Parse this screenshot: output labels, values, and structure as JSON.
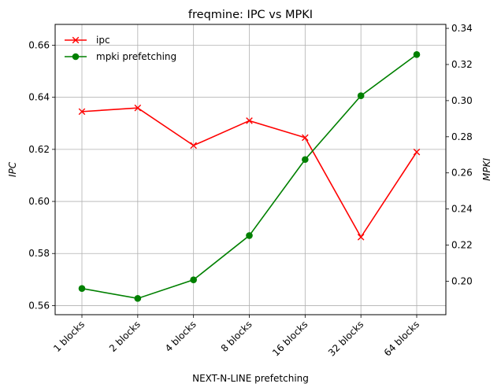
{
  "chart_data": {
    "type": "line",
    "title": "freqmine: IPC vs MPKI",
    "xlabel": "NEXT-N-LINE prefetching",
    "ylabel_left": "IPC",
    "ylabel_right": "MPKI",
    "categories": [
      "1 blocks",
      "2 blocks",
      "4 blocks",
      "8 blocks",
      "16 blocks",
      "32 blocks",
      "64 blocks"
    ],
    "ylim_left": [
      0.5565,
      0.668
    ],
    "ylim_right": [
      0.1815,
      0.3422
    ],
    "yticks_left": [
      "0.56",
      "0.58",
      "0.60",
      "0.62",
      "0.64",
      "0.66"
    ],
    "yticks_right": [
      "0.20",
      "0.22",
      "0.24",
      "0.26",
      "0.28",
      "0.30",
      "0.32",
      "0.34"
    ],
    "grid": true,
    "legend_position": "top-left",
    "series": [
      {
        "name": "ipc",
        "axis": "left",
        "color": "#ff0000",
        "marker": "x",
        "values": [
          0.6345,
          0.6359,
          0.6215,
          0.631,
          0.6245,
          0.5863,
          0.619
        ]
      },
      {
        "name": "mpki prefetching",
        "axis": "right",
        "color": "#008000",
        "marker": "o",
        "values": [
          0.196,
          0.1905,
          0.2008,
          0.2253,
          0.2674,
          0.3027,
          0.3255
        ]
      }
    ]
  }
}
